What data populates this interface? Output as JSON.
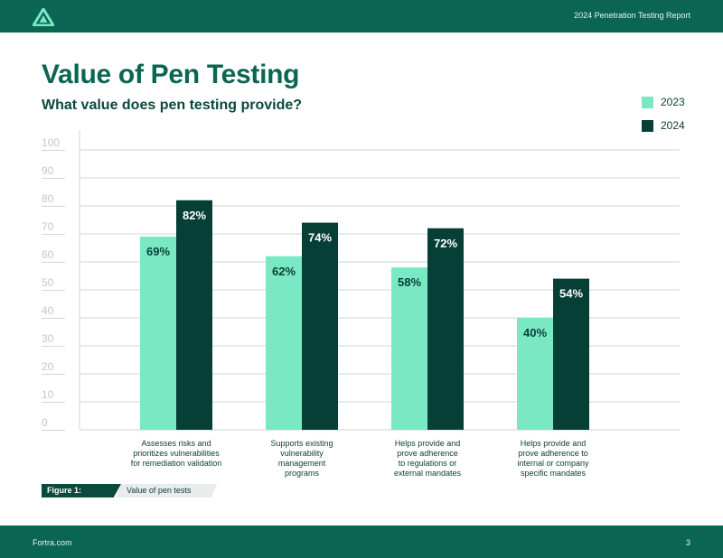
{
  "header": {
    "report_title": "2024 Penetration Testing Report",
    "logo_icon": "fortra-triangle-logo-icon"
  },
  "title": "Value of Pen Testing",
  "subtitle": "What value does pen testing provide?",
  "colors": {
    "brand": "#0a6652",
    "series_2023": "#79e8c3",
    "series_2024": "#063f36",
    "gridline": "#cfd6d4",
    "tick_text": "#c3c7c6"
  },
  "chart_data": {
    "type": "bar",
    "categories": [
      [
        "Assesses risks and",
        "prioritizes vulnerabilities",
        "for remediation validation"
      ],
      [
        "Supports existing",
        "vulnerability",
        "management",
        "programs"
      ],
      [
        "Helps provide and",
        "prove adherence",
        "to regulations or",
        "external mandates"
      ],
      [
        "Helps provide and",
        "prove adherence to",
        "internal or company",
        "specific mandates"
      ]
    ],
    "series": [
      {
        "name": "2023",
        "values": [
          69,
          62,
          58,
          40
        ],
        "labels": [
          "69%",
          "62%",
          "58%",
          "40%"
        ]
      },
      {
        "name": "2024",
        "values": [
          82,
          74,
          72,
          54
        ],
        "labels": [
          "82%",
          "74%",
          "72%",
          "54%"
        ]
      }
    ],
    "ylim": [
      0,
      100
    ],
    "yticks": [
      0,
      10,
      20,
      30,
      40,
      50,
      60,
      70,
      80,
      90,
      100
    ],
    "grid": true,
    "legend": "top-right"
  },
  "figure": {
    "tag": "Figure 1:",
    "caption": "Value of pen tests"
  },
  "footer": {
    "site": "Fortra.com",
    "page_number": "3"
  }
}
